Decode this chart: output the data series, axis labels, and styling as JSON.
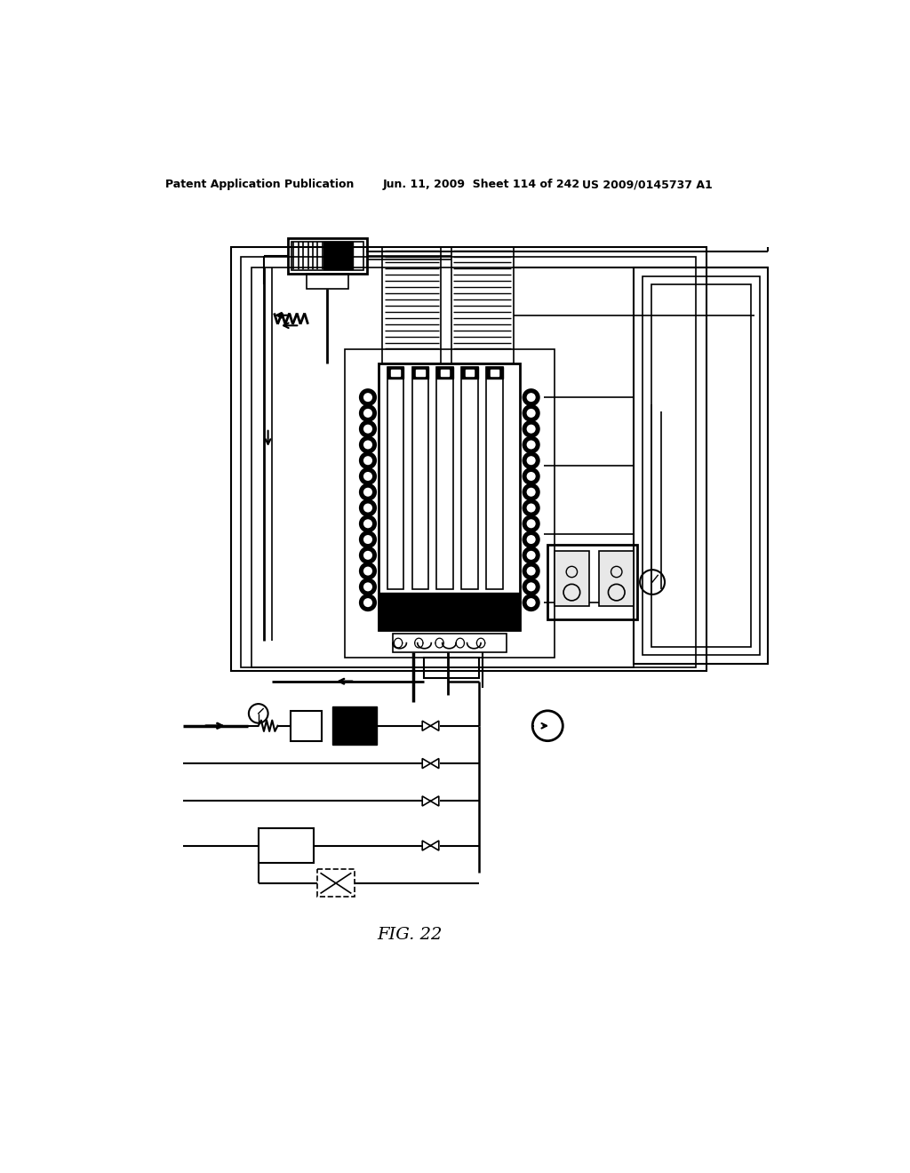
{
  "title_left": "Patent Application Publication",
  "title_mid": "Jun. 11, 2009  Sheet 114 of 242",
  "title_right": "US 2009/0145737 A1",
  "fig_label": "FIG. 22",
  "bg_color": "#ffffff",
  "line_color": "#000000",
  "header_fontsize": 9,
  "fig_label_fontsize": 14
}
